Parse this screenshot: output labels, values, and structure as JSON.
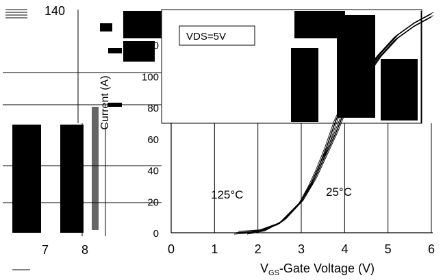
{
  "chart_data": {
    "type": "line",
    "title": "",
    "annotation": "VDS=5V",
    "xlabel_main": "V",
    "xlabel_sub": "GS",
    "xlabel_rest": "-Gate Voltage (V)",
    "ylabel": "Current (A)",
    "xlim": [
      0,
      6
    ],
    "ylim": [
      0,
      140
    ],
    "x_ticks": [
      "0",
      "1",
      "2",
      "3",
      "4",
      "5",
      "6"
    ],
    "y_ticks": [
      "0",
      "20",
      "40",
      "60",
      "80",
      "100",
      "120",
      "140"
    ],
    "artifact_ticks": [
      "7",
      "8"
    ],
    "grid": true,
    "series": [
      {
        "name": "125°C",
        "x": [
          1.5,
          2.0,
          2.5,
          3.0,
          3.2,
          3.4,
          3.6,
          3.8,
          4.0,
          4.4,
          4.8,
          5.2,
          5.6,
          6.0
        ],
        "values": [
          0,
          1,
          6,
          20,
          30,
          42,
          56,
          72,
          84,
          100,
          114,
          126,
          134,
          140
        ]
      },
      {
        "name": "25°C",
        "x": [
          1.8,
          2.2,
          2.6,
          3.0,
          3.3,
          3.6,
          3.8,
          4.0,
          4.4,
          4.8,
          5.2,
          5.6,
          6.0
        ],
        "values": [
          0,
          2,
          8,
          20,
          34,
          52,
          64,
          78,
          96,
          112,
          124,
          132,
          138
        ]
      }
    ]
  }
}
